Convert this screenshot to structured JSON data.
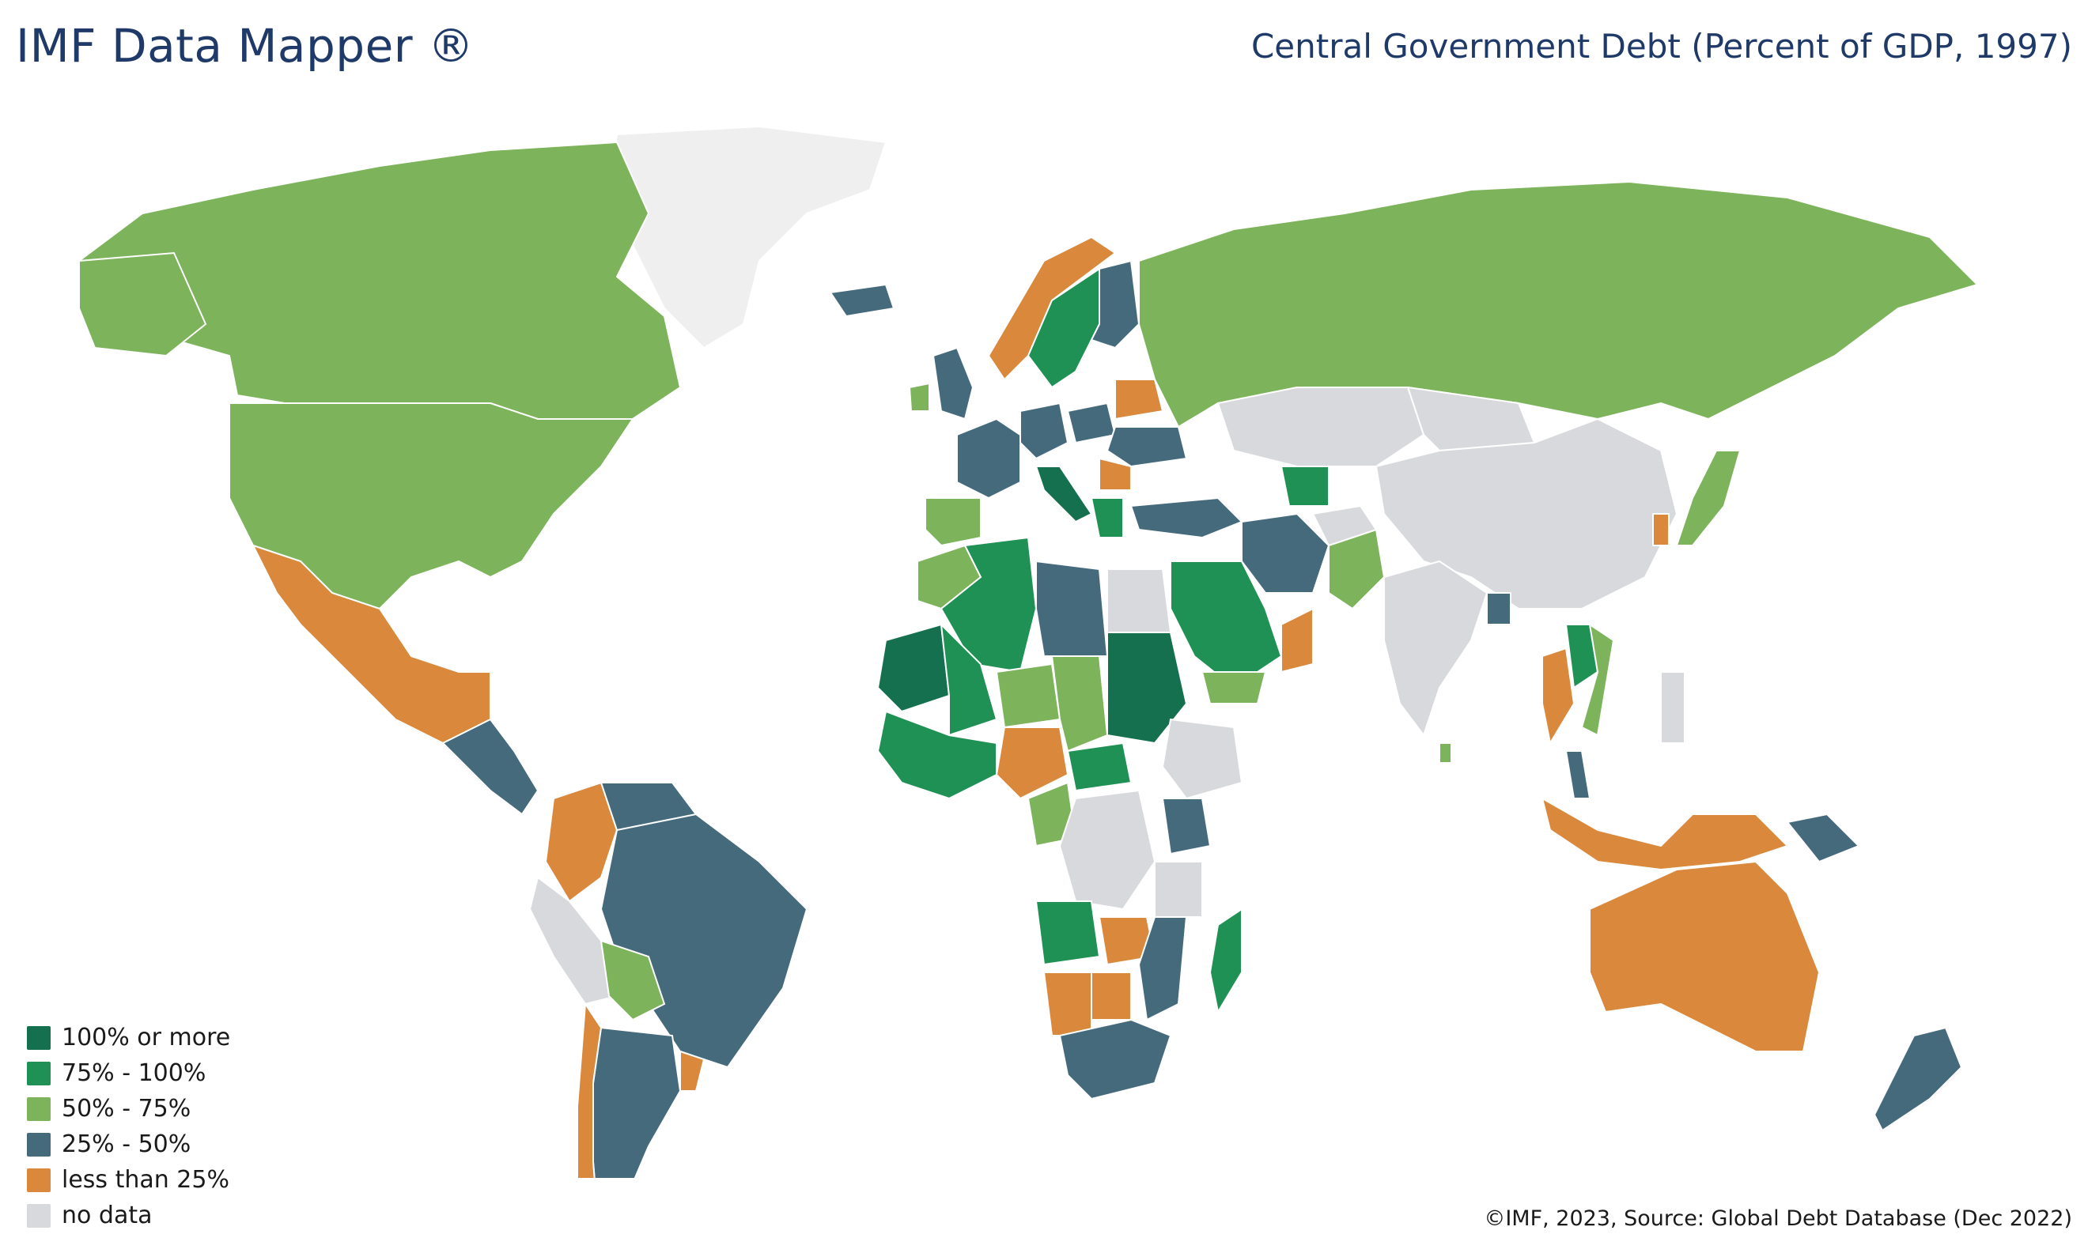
{
  "header": {
    "app_title": "IMF Data Mapper ®",
    "map_title": "Central Government Debt (Percent of GDP, 1997)"
  },
  "colors": {
    "c100": "#15704f",
    "c75": "#1f9154",
    "c50": "#7db35b",
    "c25": "#456a7c",
    "c0": "#d9883c",
    "none": "#d8d9dc",
    "greenland": "#efefef"
  },
  "legend": {
    "items": [
      {
        "label": "100% or more",
        "color": "#15704f"
      },
      {
        "label": "75% - 100%",
        "color": "#1f9154"
      },
      {
        "label": "50% - 75%",
        "color": "#7db35b"
      },
      {
        "label": "25% - 50%",
        "color": "#456a7c"
      },
      {
        "label": "less than 25%",
        "color": "#d9883c"
      },
      {
        "label": "no data",
        "color": "#d8d9dc"
      }
    ]
  },
  "footer": {
    "copyright": "©IMF, 2023, Source: Global Debt Database (Dec 2022)"
  }
}
